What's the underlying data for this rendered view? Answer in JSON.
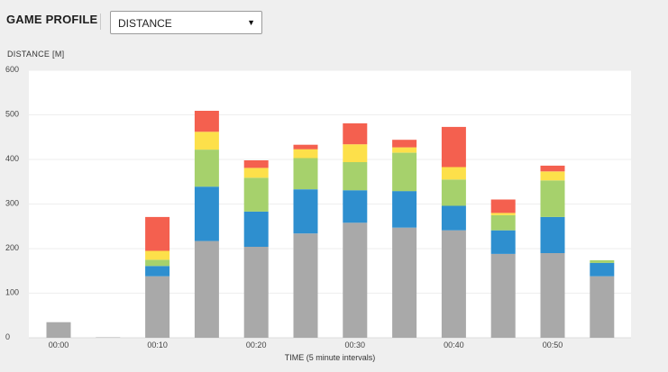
{
  "header": {
    "title": "GAME PROFILE",
    "selector": {
      "selected": "DISTANCE",
      "arrow_icon": "triangle-down-icon"
    }
  },
  "chart_data": {
    "type": "bar",
    "stacked": true,
    "ylabel": "DISTANCE [M]",
    "xlabel": "TIME (5 minute intervals)",
    "ylim": [
      0,
      600
    ],
    "yticks": [
      0,
      100,
      200,
      300,
      400,
      500,
      600
    ],
    "grid": true,
    "legend": "none",
    "x_tick_labels": [
      "00:00",
      "00:10",
      "00:20",
      "00:30",
      "00:40",
      "00:50"
    ],
    "x_tick_positions": [
      0,
      2,
      4,
      6,
      8,
      10
    ],
    "interval_count": 12,
    "series": [
      {
        "color": "#a9a9a9",
        "values": [
          35,
          1,
          138,
          217,
          204,
          234,
          258,
          247,
          241,
          188,
          190,
          138
        ]
      },
      {
        "color": "#2e8fcf",
        "values": [
          0,
          0,
          23,
          122,
          79,
          99,
          73,
          82,
          55,
          53,
          81,
          30
        ]
      },
      {
        "color": "#a6d16c",
        "values": [
          0,
          0,
          14,
          83,
          76,
          70,
          63,
          86,
          59,
          34,
          82,
          6
        ]
      },
      {
        "color": "#fde04a",
        "values": [
          0,
          0,
          20,
          40,
          22,
          20,
          40,
          12,
          28,
          5,
          20,
          0
        ]
      },
      {
        "color": "#f4604f",
        "values": [
          0,
          0,
          76,
          47,
          17,
          10,
          47,
          17,
          90,
          30,
          13,
          0
        ]
      }
    ]
  }
}
